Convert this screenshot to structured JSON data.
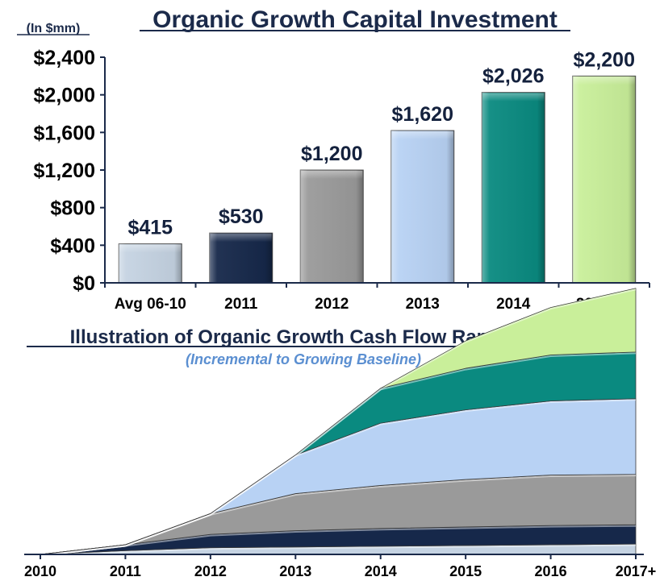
{
  "colors": {
    "title": "#1b2a4a",
    "subtitle": "#5b8fd1",
    "axis": "#1b2a4a"
  },
  "chart_data": [
    {
      "type": "bar",
      "title": "Organic Growth Capital Investment",
      "units_label": "(In $mm)",
      "categories": [
        "Avg 06-10",
        "2011",
        "2012",
        "2013",
        "2014",
        "2015(G)"
      ],
      "values": [
        415,
        530,
        1200,
        1620,
        2026,
        2200
      ],
      "value_labels": [
        "$415",
        "$530",
        "$1,200",
        "$1,620",
        "$2,026",
        "$2,200"
      ],
      "bar_colors": [
        "#c5d3e2",
        "#16284a",
        "#9a9a9a",
        "#b8d2f4",
        "#0a8a80",
        "#c9ef9a"
      ],
      "ylim": [
        0,
        2400
      ],
      "yticks": [
        0,
        400,
        800,
        1200,
        1600,
        2000,
        2400
      ],
      "ytick_labels": [
        "$0",
        "$400",
        "$800",
        "$1,200",
        "$1,600",
        "$2,000",
        "$2,400"
      ],
      "grid": false,
      "xlabel": "",
      "ylabel": ""
    },
    {
      "type": "area",
      "title": "Illustration of Organic Growth Cash Flow Ramp Up",
      "subtitle": "(Incremental to Growing Baseline)",
      "x": [
        "2010",
        "2011",
        "2012",
        "2013",
        "2014",
        "2015",
        "2016",
        "2017+"
      ],
      "stacked": true,
      "series": [
        {
          "color": "#c5d3e2",
          "values": [
            0,
            5,
            9,
            10,
            11,
            12,
            13,
            14
          ]
        },
        {
          "color": "#16284a",
          "values": [
            0,
            8,
            18,
            22,
            24,
            25,
            26,
            26
          ]
        },
        {
          "color": "#9a9a9a",
          "values": [
            0,
            0,
            28,
            50,
            58,
            64,
            68,
            68
          ]
        },
        {
          "color": "#b8d2f4",
          "values": [
            0,
            0,
            0,
            52,
            84,
            94,
            100,
            102
          ]
        },
        {
          "color": "#0a8a80",
          "values": [
            0,
            0,
            0,
            0,
            47,
            56,
            62,
            63
          ]
        },
        {
          "color": "#c9ef9a",
          "values": [
            0,
            0,
            0,
            0,
            0,
            37,
            64,
            86
          ]
        }
      ],
      "grid": false,
      "yaxis_visible": false
    }
  ]
}
